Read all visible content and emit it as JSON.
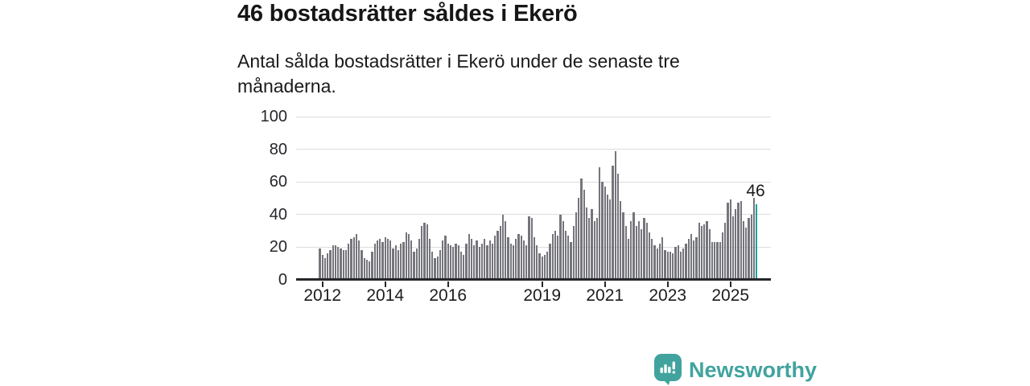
{
  "header": {
    "title": "46 bostadsrätter såldes i Ekerö",
    "subtitle": "Antal sålda bostadsrätter i Ekerö under de senaste tre månaderna."
  },
  "chart_data": {
    "type": "bar",
    "title": "46 bostadsrätter såldes i Ekerö",
    "subtitle": "Antal sålda bostadsrätter i Ekerö under de senaste tre månaderna.",
    "x_start_month": "2011-12",
    "x_end_month": "2025-11",
    "frequency": "monthly",
    "values": [
      19,
      15,
      13,
      16,
      18,
      21,
      21,
      20,
      19,
      18,
      18,
      22,
      25,
      26,
      28,
      24,
      18,
      13,
      12,
      11,
      17,
      22,
      24,
      25,
      23,
      26,
      25,
      24,
      19,
      21,
      18,
      22,
      23,
      29,
      28,
      24,
      17,
      19,
      25,
      33,
      35,
      34,
      25,
      17,
      13,
      14,
      18,
      24,
      27,
      22,
      21,
      20,
      22,
      21,
      17,
      15,
      22,
      28,
      25,
      21,
      24,
      20,
      22,
      25,
      21,
      24,
      22,
      27,
      30,
      33,
      40,
      36,
      26,
      22,
      21,
      25,
      28,
      27,
      24,
      21,
      39,
      38,
      26,
      21,
      16,
      14,
      15,
      17,
      22,
      28,
      30,
      27,
      40,
      36,
      30,
      27,
      23,
      33,
      41,
      50,
      62,
      55,
      44,
      38,
      43,
      36,
      38,
      69,
      60,
      57,
      52,
      49,
      70,
      79,
      65,
      48,
      41,
      33,
      25,
      36,
      41,
      33,
      36,
      31,
      38,
      35,
      29,
      25,
      21,
      19,
      22,
      26,
      18,
      17,
      17,
      16,
      20,
      21,
      17,
      19,
      22,
      25,
      28,
      24,
      26,
      35,
      33,
      34,
      36,
      31,
      23,
      23,
      23,
      23,
      29,
      35,
      47,
      49,
      39,
      43,
      47,
      48,
      36,
      32,
      38,
      40,
      50,
      46
    ],
    "highlight_last": true,
    "annotation": {
      "text": "46",
      "value": 46
    },
    "ylim": [
      0,
      100
    ],
    "y_ticks": [
      0,
      20,
      40,
      60,
      80,
      100
    ],
    "x_ticks": [
      {
        "label": "2012",
        "index": 1
      },
      {
        "label": "2014",
        "index": 25
      },
      {
        "label": "2016",
        "index": 49
      },
      {
        "label": "2019",
        "index": 85
      },
      {
        "label": "2021",
        "index": 109
      },
      {
        "label": "2023",
        "index": 133
      },
      {
        "label": "2025",
        "index": 157
      }
    ],
    "grid": true,
    "legend": "none",
    "bar_color": "#75757c",
    "highlight_color": "#12a5a1",
    "grid_color": "#dcdcdc",
    "axis_color": "#26272a",
    "label_color": "#1d1d1f"
  },
  "footer": {
    "brand": "Newsworthy",
    "brand_color": "#41a39e",
    "logo_icon": "bar-chart-speech-bubble-icon"
  }
}
